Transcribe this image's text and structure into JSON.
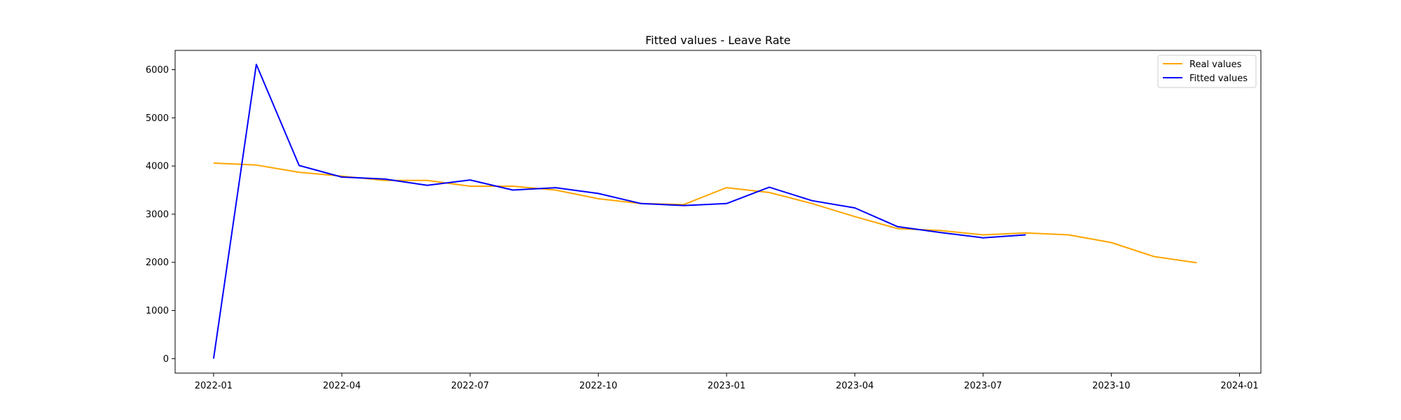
{
  "chart_data": {
    "type": "line",
    "title": "Fitted values - Leave Rate",
    "xlabel": "",
    "ylabel": "",
    "x_ticks": [
      "2022-01",
      "2022-04",
      "2022-07",
      "2022-10",
      "2023-01",
      "2023-04",
      "2023-07",
      "2023-10",
      "2024-01"
    ],
    "y_ticks": [
      0,
      1000,
      2000,
      3000,
      4000,
      5000,
      6000
    ],
    "ylim": [
      -300,
      6400
    ],
    "xlim": [
      "2021-12",
      "2024-01"
    ],
    "grid": false,
    "legend_position": "top-right",
    "series": [
      {
        "name": "Real values",
        "color": "#FFA500",
        "x": [
          "2022-01",
          "2022-02",
          "2022-03",
          "2022-04",
          "2022-05",
          "2022-06",
          "2022-07",
          "2022-08",
          "2022-09",
          "2022-10",
          "2022-11",
          "2022-12",
          "2023-01",
          "2023-02",
          "2023-03",
          "2023-04",
          "2023-05",
          "2023-06",
          "2023-07",
          "2023-08",
          "2023-09",
          "2023-10",
          "2023-11",
          "2023-12"
        ],
        "values": [
          4060,
          4020,
          3870,
          3790,
          3700,
          3700,
          3580,
          3580,
          3500,
          3320,
          3220,
          3200,
          3550,
          3450,
          3220,
          2950,
          2700,
          2660,
          2570,
          2610,
          2570,
          2410,
          2120,
          1990
        ]
      },
      {
        "name": "Fitted values",
        "color": "#0000FF",
        "x": [
          "2022-01",
          "2022-02",
          "2022-03",
          "2022-04",
          "2022-05",
          "2022-06",
          "2022-07",
          "2022-08",
          "2022-09",
          "2022-10",
          "2022-11",
          "2022-12",
          "2023-01",
          "2023-02",
          "2023-03",
          "2023-04",
          "2023-05",
          "2023-06",
          "2023-07",
          "2023-08"
        ],
        "values": [
          0,
          6110,
          4010,
          3770,
          3730,
          3600,
          3710,
          3500,
          3550,
          3430,
          3220,
          3180,
          3220,
          3560,
          3280,
          3130,
          2740,
          2620,
          2510,
          2570
        ]
      }
    ]
  }
}
